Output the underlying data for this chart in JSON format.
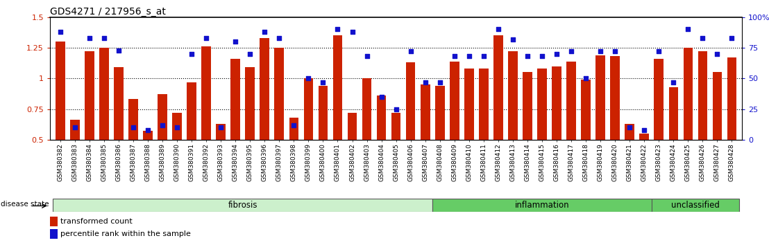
{
  "title": "GDS4271 / 217956_s_at",
  "samples": [
    "GSM380382",
    "GSM380383",
    "GSM380384",
    "GSM380385",
    "GSM380386",
    "GSM380387",
    "GSM380388",
    "GSM380389",
    "GSM380390",
    "GSM380391",
    "GSM380392",
    "GSM380393",
    "GSM380394",
    "GSM380395",
    "GSM380396",
    "GSM380397",
    "GSM380398",
    "GSM380399",
    "GSM380400",
    "GSM380401",
    "GSM380402",
    "GSM380403",
    "GSM380404",
    "GSM380405",
    "GSM380406",
    "GSM380407",
    "GSM380408",
    "GSM380409",
    "GSM380410",
    "GSM380411",
    "GSM380412",
    "GSM380413",
    "GSM380414",
    "GSM380415",
    "GSM380416",
    "GSM380417",
    "GSM380418",
    "GSM380419",
    "GSM380420",
    "GSM380421",
    "GSM380422",
    "GSM380423",
    "GSM380424",
    "GSM380425",
    "GSM380426",
    "GSM380427",
    "GSM380428"
  ],
  "red_bars": [
    1.3,
    0.66,
    1.22,
    1.25,
    1.09,
    0.83,
    0.57,
    0.87,
    0.72,
    0.97,
    1.26,
    0.63,
    1.16,
    1.09,
    1.33,
    1.25,
    0.68,
    1.0,
    0.94,
    1.35,
    0.72,
    1.0,
    0.86,
    0.72,
    1.13,
    0.95,
    0.94,
    1.14,
    1.08,
    1.08,
    1.35,
    1.22,
    1.05,
    1.08,
    1.1,
    1.14,
    0.99,
    1.19,
    1.18,
    0.63,
    0.55,
    1.16,
    0.93,
    1.25,
    1.22,
    1.05,
    1.17
  ],
  "blue_markers": [
    88,
    10,
    83,
    83,
    73,
    10,
    8,
    12,
    10,
    70,
    83,
    10,
    80,
    70,
    88,
    83,
    12,
    50,
    47,
    90,
    88,
    68,
    35,
    25,
    72,
    47,
    47,
    68,
    68,
    68,
    90,
    82,
    68,
    68,
    70,
    72,
    50,
    72,
    72,
    10,
    8,
    72,
    47,
    90,
    83,
    70,
    83
  ],
  "groups": [
    {
      "label": "fibrosis",
      "start": 0,
      "end": 26,
      "facecolor": "#ccf0cc"
    },
    {
      "label": "inflammation",
      "start": 26,
      "end": 41,
      "facecolor": "#66cc66"
    },
    {
      "label": "unclassified",
      "start": 41,
      "end": 47,
      "facecolor": "#66cc66"
    }
  ],
  "ylim_left": [
    0.5,
    1.5
  ],
  "ylim_right": [
    0,
    100
  ],
  "yticks_left": [
    0.5,
    0.75,
    1.0,
    1.25,
    1.5
  ],
  "ytick_labels_left": [
    "0.5",
    "0.75",
    "1",
    "1.25",
    "1.5"
  ],
  "yticks_right": [
    0,
    25,
    50,
    75,
    100
  ],
  "ytick_labels_right": [
    "0",
    "25",
    "50",
    "75",
    "100%"
  ],
  "dotted_lines": [
    0.75,
    1.0,
    1.25
  ],
  "bar_color": "#cc2200",
  "marker_color": "#1111cc",
  "bar_baseline": 0.5,
  "bar_width": 0.65,
  "legend_items": [
    "transformed count",
    "percentile rank within the sample"
  ],
  "disease_state_label": "disease state",
  "title_fontsize": 10,
  "tick_fontsize": 6.5,
  "group_label_fontsize": 8.5
}
